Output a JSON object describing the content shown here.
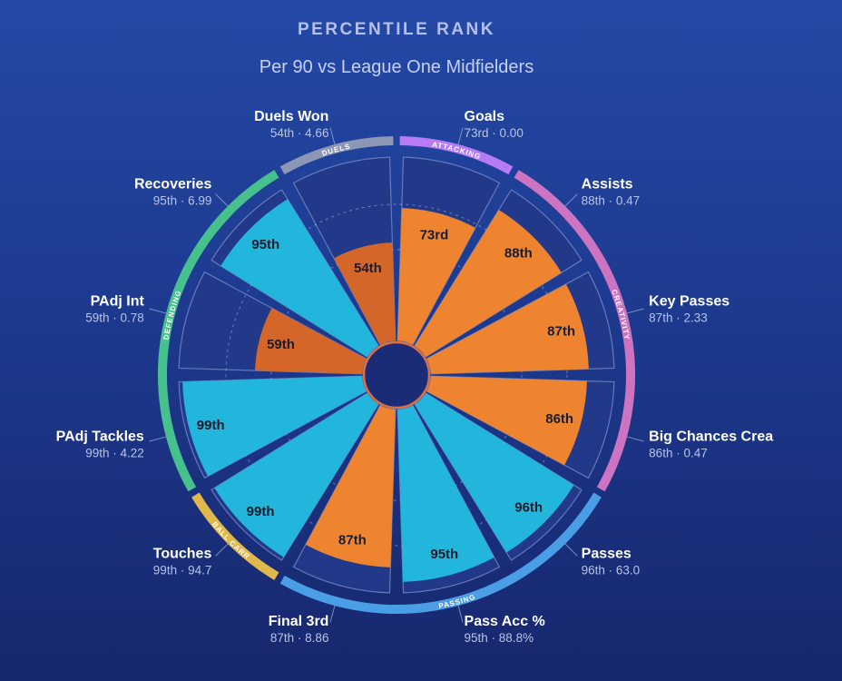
{
  "title": "PERCENTILE RANK",
  "subtitle": "Per 90 vs League One Midfielders",
  "colors": {
    "attacking": "#ee8430",
    "attacking_low": "#d4662a",
    "possession": "#23b6dc",
    "track": "#22398a",
    "track_border": "#7e8fc9",
    "hub": "#1a2c78",
    "hub_ring": "#de7040"
  },
  "chart_data": {
    "type": "polar-bar",
    "title": "PERCENTILE RANK",
    "subtitle": "Per 90 vs League One Midfielders",
    "rlim": [
      0,
      100
    ],
    "series": [
      {
        "label": "Goals",
        "percentile": 73,
        "rank_text": "73rd",
        "sub": "73rd · 0.00",
        "value": "0.00",
        "group": "attack"
      },
      {
        "label": "Assists",
        "percentile": 88,
        "rank_text": "88th",
        "sub": "88th · 0.47",
        "value": "0.47",
        "group": "attack"
      },
      {
        "label": "Key Passes",
        "percentile": 87,
        "rank_text": "87th",
        "sub": "87th · 2.33",
        "value": "2.33",
        "group": "attack"
      },
      {
        "label": "Big Chances Crea",
        "percentile": 86,
        "rank_text": "86th",
        "sub": "86th · 0.47",
        "value": "0.47",
        "group": "attack"
      },
      {
        "label": "Passes",
        "percentile": 96,
        "rank_text": "96th",
        "sub": "96th · 63.0",
        "value": "63.0",
        "group": "possession"
      },
      {
        "label": "Pass Acc %",
        "percentile": 95,
        "rank_text": "95th",
        "sub": "95th · 88.8%",
        "value": "88.8%",
        "group": "possession"
      },
      {
        "label": "Final 3rd",
        "percentile": 87,
        "rank_text": "87th",
        "sub": "87th · 8.86",
        "value": "8.86",
        "group": "attack"
      },
      {
        "label": "Touches",
        "percentile": 99,
        "rank_text": "99th",
        "sub": "99th · 94.7",
        "value": "94.7",
        "group": "possession"
      },
      {
        "label": "PAdj Tackles",
        "percentile": 99,
        "rank_text": "99th",
        "sub": "99th · 4.22",
        "value": "4.22",
        "group": "possession"
      },
      {
        "label": "PAdj Int",
        "percentile": 59,
        "rank_text": "59th",
        "sub": "59th · 0.78",
        "value": "0.78",
        "group": "attack_low"
      },
      {
        "label": "Recoveries",
        "percentile": 95,
        "rank_text": "95th",
        "sub": "95th · 6.99",
        "value": "6.99",
        "group": "possession"
      },
      {
        "label": "Duels Won",
        "percentile": 54,
        "rank_text": "54th",
        "sub": "54th · 4.66",
        "value": "4.66",
        "group": "attack_low"
      }
    ],
    "categories_arcs": [
      {
        "name": "ATTACKING",
        "color": "#b57cf6",
        "from": 0,
        "to": 1
      },
      {
        "name": "CREATIVITY",
        "color": "#cc74c2",
        "from": 1,
        "to": 4
      },
      {
        "name": "PASSING",
        "color": "#4a9ee6",
        "from": 4,
        "to": 7
      },
      {
        "name": "BALL CARR",
        "color": "#e1b84b",
        "from": 7,
        "to": 8
      },
      {
        "name": "DEFENDING",
        "color": "#46c08c",
        "from": 8,
        "to": 11
      },
      {
        "name": "DUELS",
        "color": "#8c97b5",
        "from": 11,
        "to": 12
      }
    ]
  }
}
